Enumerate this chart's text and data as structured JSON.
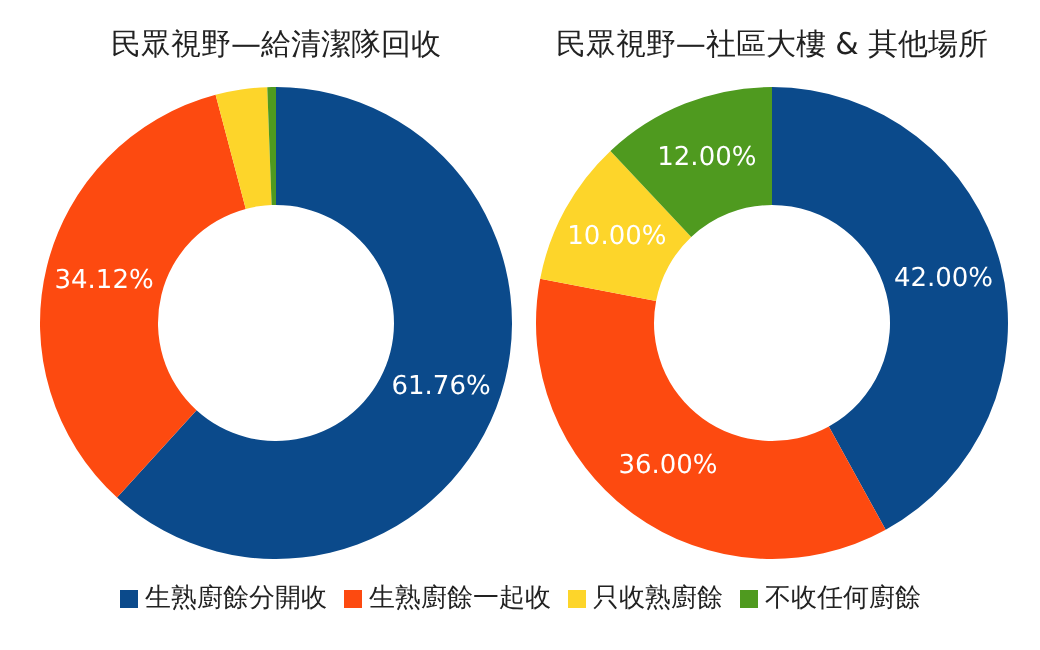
{
  "chart_data": [
    {
      "type": "donut",
      "title": "民眾視野—給清潔隊回收",
      "categories": [
        "生熟廚餘分開收",
        "生熟廚餘一起收",
        "只收熟廚餘",
        "不收任何廚餘"
      ],
      "values": [
        61.76,
        34.12,
        3.53,
        0.59
      ],
      "colors": [
        "#0b4a8b",
        "#fd4a10",
        "#fdd52a",
        "#4f9a1f"
      ],
      "value_labels": [
        "61.76%",
        "34.12%",
        null,
        null
      ],
      "legend": "bottom"
    },
    {
      "type": "donut",
      "title": "民眾視野—社區大樓 & 其他場所",
      "categories": [
        null,
        null,
        null,
        null
      ],
      "values": [
        42,
        36,
        10,
        12
      ],
      "colors": [
        "#0b4a8b",
        "#fd4a10",
        "#fdd52a",
        "#4f9a1f"
      ],
      "value_labels": [
        "42.00%",
        "36.00%",
        "10.00%",
        "12.00%"
      ],
      "legend": false
    }
  ]
}
